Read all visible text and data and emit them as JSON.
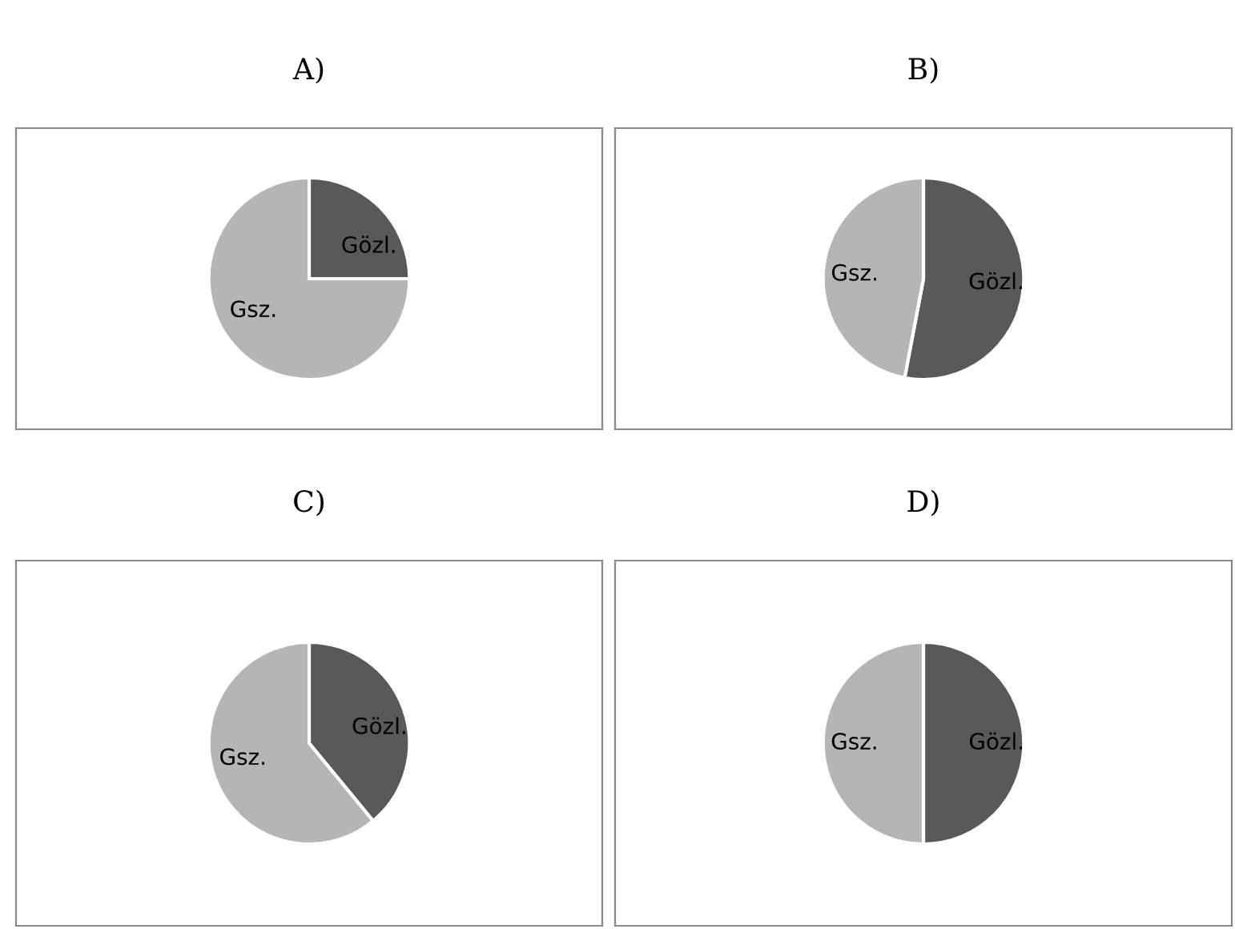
{
  "chart_data": [
    {
      "type": "pie",
      "title": "A)",
      "categories": [
        "Gözl.",
        "Gsz."
      ],
      "values": [
        25,
        75
      ],
      "colors": [
        "#595959",
        "#b5b5b5"
      ]
    },
    {
      "type": "pie",
      "title": "B)",
      "categories": [
        "Gözl.",
        "Gsz."
      ],
      "values": [
        53,
        47
      ],
      "colors": [
        "#595959",
        "#b5b5b5"
      ]
    },
    {
      "type": "pie",
      "title": "C)",
      "categories": [
        "Gözl.",
        "Gsz."
      ],
      "values": [
        39,
        61
      ],
      "colors": [
        "#595959",
        "#b5b5b5"
      ]
    },
    {
      "type": "pie",
      "title": "D)",
      "categories": [
        "Gözl.",
        "Gsz."
      ],
      "values": [
        50,
        50
      ],
      "colors": [
        "#595959",
        "#b5b5b5"
      ]
    }
  ]
}
